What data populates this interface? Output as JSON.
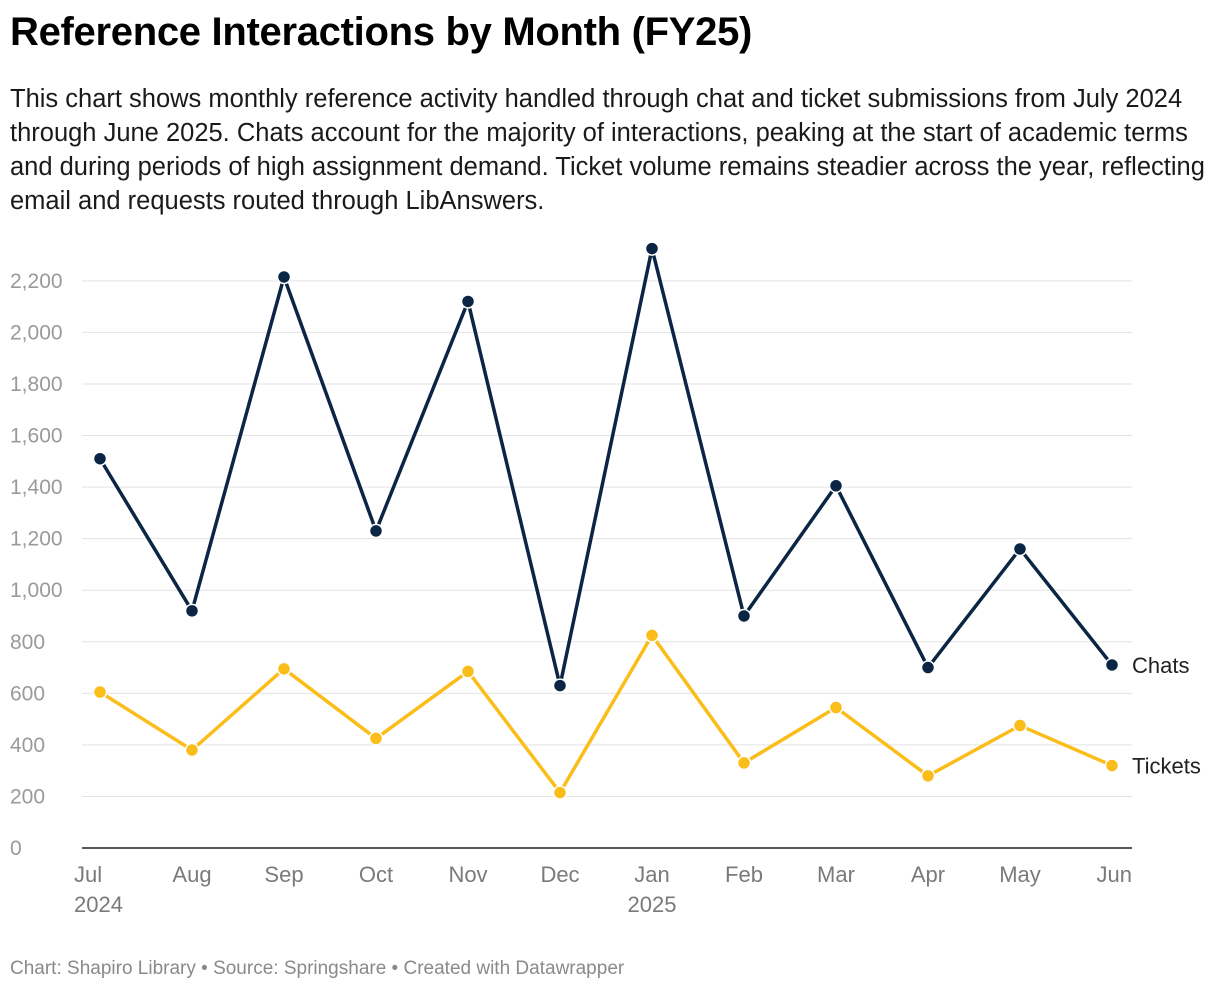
{
  "header": {
    "title": "Reference Interactions by Month (FY25)",
    "subtitle": "This chart shows monthly reference activity handled through chat and ticket submissions from July 2024 through June 2025. Chats account for the majority of interactions, peaking at the start of academic terms and during periods of high assignment demand. Ticket volume remains steadier across the year, reflecting email and requests routed through LibAnswers."
  },
  "footer": {
    "credit": "Chart: Shapiro Library • Source: Springshare • Created with Datawrapper"
  },
  "chart_data": {
    "type": "line",
    "title": "Reference Interactions by Month (FY25)",
    "xlabel": "",
    "ylabel": "",
    "categories": [
      "Jul",
      "Aug",
      "Sep",
      "Oct",
      "Nov",
      "Dec",
      "Jan",
      "Feb",
      "Mar",
      "Apr",
      "May",
      "Jun"
    ],
    "year_labels": [
      {
        "category": "Jul",
        "label": "2024"
      },
      {
        "category": "Jan",
        "label": "2025"
      }
    ],
    "ylim": [
      0,
      2300
    ],
    "yticks": [
      0,
      200,
      400,
      600,
      800,
      1000,
      1200,
      1400,
      1600,
      1800,
      2000,
      2200
    ],
    "ytick_labels": [
      "0",
      "200",
      "400",
      "600",
      "800",
      "1,000",
      "1,200",
      "1,400",
      "1,600",
      "1,800",
      "2,000",
      "2,200"
    ],
    "grid": true,
    "legend": "direct labels at line ends (right)",
    "series": [
      {
        "name": "Chats",
        "color": "#0b2545",
        "values": [
          1510,
          920,
          2215,
          1230,
          2120,
          630,
          2325,
          900,
          1405,
          700,
          1160,
          710
        ]
      },
      {
        "name": "Tickets",
        "color": "#fbbd1a",
        "values": [
          605,
          380,
          695,
          425,
          685,
          215,
          825,
          330,
          545,
          280,
          475,
          320
        ]
      }
    ]
  }
}
